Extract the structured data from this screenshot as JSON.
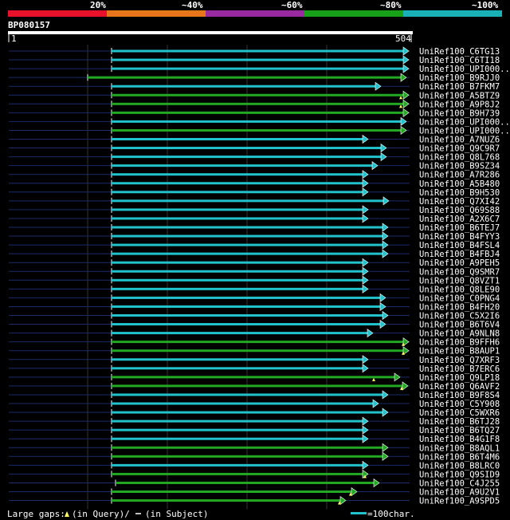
{
  "colors": {
    "bg": "#000000",
    "scale": [
      "#e8102a",
      "#e8761a",
      "#9a2aa0",
      "#19a019",
      "#1ab0b8"
    ],
    "cyan": "#22c2cc",
    "green": "#22a822",
    "tick": "#ffffff",
    "grid": "#333333",
    "track": "#1a2a6a",
    "gap": "#ffff66"
  },
  "chart_data": {
    "type": "alignment-overview",
    "title": "BP080157",
    "identity_scale": [
      "20%",
      "~40%",
      "~60%",
      "~80%",
      "~100%"
    ],
    "query_range": {
      "start": 1,
      "end": 504,
      "start_label": "1",
      "end_label": "504"
    },
    "legend": {
      "gaps_label": "Large gaps:",
      "in_query": "(in Query)/",
      "in_subject": "(in Subject)",
      "scale_label": "=100char."
    },
    "hits": [
      {
        "name": "UniRef100_C6TG13",
        "start": 130,
        "end": 503,
        "color": "cyan",
        "gap_q": null
      },
      {
        "name": "UniRef100_C6TI18",
        "start": 130,
        "end": 503,
        "color": "cyan",
        "gap_q": null
      },
      {
        "name": "UniRef100_UPI000..",
        "start": 130,
        "end": 503,
        "color": "cyan",
        "gap_q": null
      },
      {
        "name": "UniRef100_B9RJJ0",
        "start": 100,
        "end": 500,
        "color": "green",
        "gap_q": null
      },
      {
        "name": "UniRef100_B7FKM7",
        "start": 130,
        "end": 468,
        "color": "cyan",
        "gap_q": null
      },
      {
        "name": "UniRef100_A5BTZ9",
        "start": 130,
        "end": 503,
        "color": "green",
        "gap_q": 493
      },
      {
        "name": "UniRef100_A9P8J2",
        "start": 130,
        "end": 503,
        "color": "green",
        "gap_q": 493
      },
      {
        "name": "UniRef100_B9H739",
        "start": 130,
        "end": 503,
        "color": "green",
        "gap_q": null
      },
      {
        "name": "UniRef100_UPI000..",
        "start": 130,
        "end": 500,
        "color": "cyan",
        "gap_q": null
      },
      {
        "name": "UniRef100_UPI000..",
        "start": 130,
        "end": 500,
        "color": "green",
        "gap_q": null
      },
      {
        "name": "UniRef100_A7NUZ6",
        "start": 130,
        "end": 452,
        "color": "cyan",
        "gap_q": null
      },
      {
        "name": "UniRef100_Q9C9R7",
        "start": 130,
        "end": 475,
        "color": "cyan",
        "gap_q": null
      },
      {
        "name": "UniRef100_Q8L768",
        "start": 130,
        "end": 475,
        "color": "cyan",
        "gap_q": null
      },
      {
        "name": "UniRef100_B9SZ34",
        "start": 130,
        "end": 464,
        "color": "cyan",
        "gap_q": null
      },
      {
        "name": "UniRef100_A7R286",
        "start": 130,
        "end": 452,
        "color": "cyan",
        "gap_q": null
      },
      {
        "name": "UniRef100_A5B480",
        "start": 130,
        "end": 452,
        "color": "cyan",
        "gap_q": null
      },
      {
        "name": "UniRef100_B9H530",
        "start": 130,
        "end": 452,
        "color": "cyan",
        "gap_q": null
      },
      {
        "name": "UniRef100_Q7XI42",
        "start": 130,
        "end": 478,
        "color": "cyan",
        "gap_q": null
      },
      {
        "name": "UniRef100_Q69S88",
        "start": 130,
        "end": 452,
        "color": "cyan",
        "gap_q": null
      },
      {
        "name": "UniRef100_A2X6C7",
        "start": 130,
        "end": 452,
        "color": "cyan",
        "gap_q": null
      },
      {
        "name": "UniRef100_B6TEJ7",
        "start": 130,
        "end": 477,
        "color": "cyan",
        "gap_q": null
      },
      {
        "name": "UniRef100_B4FYY3",
        "start": 130,
        "end": 477,
        "color": "cyan",
        "gap_q": null
      },
      {
        "name": "UniRef100_B4FSL4",
        "start": 130,
        "end": 477,
        "color": "cyan",
        "gap_q": null
      },
      {
        "name": "UniRef100_B4FBJ4",
        "start": 130,
        "end": 477,
        "color": "cyan",
        "gap_q": null
      },
      {
        "name": "UniRef100_A9PEH5",
        "start": 130,
        "end": 452,
        "color": "cyan",
        "gap_q": null
      },
      {
        "name": "UniRef100_Q9SMR7",
        "start": 130,
        "end": 452,
        "color": "cyan",
        "gap_q": null
      },
      {
        "name": "UniRef100_Q8VZT1",
        "start": 130,
        "end": 452,
        "color": "cyan",
        "gap_q": null
      },
      {
        "name": "UniRef100_Q8LE90",
        "start": 130,
        "end": 452,
        "color": "cyan",
        "gap_q": null
      },
      {
        "name": "UniRef100_C0PNG4",
        "start": 130,
        "end": 474,
        "color": "cyan",
        "gap_q": null
      },
      {
        "name": "UniRef100_B4FH20",
        "start": 130,
        "end": 474,
        "color": "cyan",
        "gap_q": null
      },
      {
        "name": "UniRef100_C5X2I6",
        "start": 130,
        "end": 477,
        "color": "cyan",
        "gap_q": null
      },
      {
        "name": "UniRef100_B6T6V4",
        "start": 130,
        "end": 474,
        "color": "cyan",
        "gap_q": null
      },
      {
        "name": "UniRef100_A9NLN8",
        "start": 130,
        "end": 458,
        "color": "cyan",
        "gap_q": null
      },
      {
        "name": "UniRef100_B9FFH6",
        "start": 130,
        "end": 503,
        "color": "green",
        "gap_q": 496
      },
      {
        "name": "UniRef100_B8AUP1",
        "start": 130,
        "end": 503,
        "color": "green",
        "gap_q": 496
      },
      {
        "name": "UniRef100_Q7XRF3",
        "start": 130,
        "end": 452,
        "color": "cyan",
        "gap_q": null
      },
      {
        "name": "UniRef100_B7ERC6",
        "start": 130,
        "end": 452,
        "color": "cyan",
        "gap_q": null
      },
      {
        "name": "UniRef100_Q9LP18",
        "start": 130,
        "end": 492,
        "color": "green",
        "gap_q": 459
      },
      {
        "name": "UniRef100_Q6AVF2",
        "start": 130,
        "end": 502,
        "color": "green",
        "gap_q": 494
      },
      {
        "name": "UniRef100_B9F8S4",
        "start": 130,
        "end": 477,
        "color": "cyan",
        "gap_q": null
      },
      {
        "name": "UniRef100_C5Y908",
        "start": 130,
        "end": 465,
        "color": "cyan",
        "gap_q": null
      },
      {
        "name": "UniRef100_C5WXR6",
        "start": 130,
        "end": 477,
        "color": "cyan",
        "gap_q": null
      },
      {
        "name": "UniRef100_B6TJ28",
        "start": 130,
        "end": 452,
        "color": "cyan",
        "gap_q": null
      },
      {
        "name": "UniRef100_B6TQ27",
        "start": 130,
        "end": 452,
        "color": "cyan",
        "gap_q": null
      },
      {
        "name": "UniRef100_B4G1F8",
        "start": 130,
        "end": 452,
        "color": "cyan",
        "gap_q": null
      },
      {
        "name": "UniRef100_B8AQL1",
        "start": 130,
        "end": 477,
        "color": "green",
        "gap_q": null
      },
      {
        "name": "UniRef100_B6T4M6",
        "start": 130,
        "end": 477,
        "color": "green",
        "gap_q": null
      },
      {
        "name": "UniRef100_B8LRC0",
        "start": 130,
        "end": 452,
        "color": "cyan",
        "gap_q": null
      },
      {
        "name": "UniRef100_Q9SID9",
        "start": 130,
        "end": 452,
        "color": "green",
        "gap_q": 448
      },
      {
        "name": "UniRef100_C4J255",
        "start": 135,
        "end": 466,
        "color": "green",
        "gap_q": null
      },
      {
        "name": "UniRef100_A9U2V1",
        "start": 130,
        "end": 438,
        "color": "green",
        "gap_q": 430
      },
      {
        "name": "UniRef100_A9SPD5",
        "start": 130,
        "end": 424,
        "color": "green",
        "gap_q": 416
      }
    ]
  }
}
